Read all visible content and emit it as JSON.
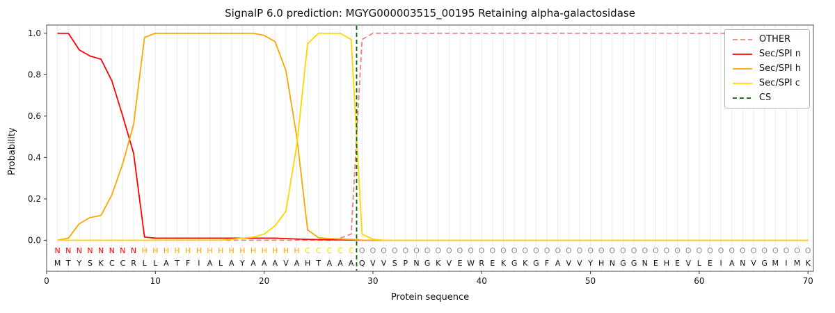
{
  "chart_data": {
    "type": "line",
    "title": "SignalP 6.0 prediction: MGYG000003515_00195 Retaining alpha-galactosidase",
    "xlabel": "Protein sequence",
    "ylabel": "Probability",
    "xlim": [
      0,
      70.5
    ],
    "ylim": [
      -0.15,
      1.04
    ],
    "xticks": [
      0,
      10,
      20,
      30,
      40,
      50,
      60,
      70
    ],
    "yticks": [
      0.0,
      0.2,
      0.4,
      0.6,
      0.8,
      1.0
    ],
    "grid": "vertical-gridline-per-residue",
    "gridline_color": "#ececec",
    "legend_position": "upper right",
    "x": [
      1,
      2,
      3,
      4,
      5,
      6,
      7,
      8,
      9,
      10,
      11,
      12,
      13,
      14,
      15,
      16,
      17,
      18,
      19,
      20,
      21,
      22,
      23,
      24,
      25,
      26,
      27,
      28,
      29,
      30,
      31,
      32,
      33,
      34,
      35,
      36,
      37,
      38,
      39,
      40,
      41,
      42,
      43,
      44,
      45,
      46,
      47,
      48,
      49,
      50,
      51,
      52,
      53,
      54,
      55,
      56,
      57,
      58,
      59,
      60,
      61,
      62,
      63,
      64,
      65,
      66,
      67,
      68,
      69,
      70
    ],
    "series": [
      {
        "name": "OTHER",
        "color": "#f08080",
        "dash": "7 4",
        "values": [
          0,
          0,
          0,
          0,
          0,
          0,
          0,
          0,
          0,
          0,
          0,
          0,
          0,
          0,
          0,
          0,
          0,
          0,
          0,
          0,
          0,
          0,
          0,
          0,
          0,
          0,
          0.01,
          0.03,
          0.97,
          1,
          1,
          1,
          1,
          1,
          1,
          1,
          1,
          1,
          1,
          1,
          1,
          1,
          1,
          1,
          1,
          1,
          1,
          1,
          1,
          1,
          1,
          1,
          1,
          1,
          1,
          1,
          1,
          1,
          1,
          1,
          1,
          1,
          1,
          1,
          1,
          1,
          1,
          1,
          1,
          1
        ]
      },
      {
        "name": "Sec/SPI n",
        "color": "#ff0000",
        "dash": null,
        "values": [
          1,
          1,
          0.92,
          0.89,
          0.875,
          0.77,
          0.6,
          0.42,
          0.015,
          0.01,
          0.01,
          0.01,
          0.01,
          0.01,
          0.01,
          0.01,
          0.01,
          0.01,
          0.01,
          0.01,
          0.01,
          0.008,
          0.006,
          0.004,
          0.003,
          0.002,
          0.002,
          0.001,
          0,
          0,
          0,
          0,
          0,
          0,
          0,
          0,
          0,
          0,
          0,
          0,
          0,
          0,
          0,
          0,
          0,
          0,
          0,
          0,
          0,
          0,
          0,
          0,
          0,
          0,
          0,
          0,
          0,
          0,
          0,
          0,
          0,
          0,
          0,
          0,
          0,
          0,
          0,
          0,
          0,
          0
        ]
      },
      {
        "name": "Sec/SPI h",
        "color": "#ffa500",
        "dash": null,
        "values": [
          0,
          0.01,
          0.08,
          0.11,
          0.12,
          0.22,
          0.37,
          0.56,
          0.98,
          1,
          1,
          1,
          1,
          1,
          1,
          1,
          1,
          1,
          1,
          0.99,
          0.96,
          0.82,
          0.5,
          0.05,
          0.012,
          0.008,
          0.006,
          0.004,
          0,
          0,
          0,
          0,
          0,
          0,
          0,
          0,
          0,
          0,
          0,
          0,
          0,
          0,
          0,
          0,
          0,
          0,
          0,
          0,
          0,
          0,
          0,
          0,
          0,
          0,
          0,
          0,
          0,
          0,
          0,
          0,
          0,
          0,
          0,
          0,
          0,
          0,
          0,
          0,
          0,
          0
        ]
      },
      {
        "name": "Sec/SPI c",
        "color": "#ffd700",
        "dash": null,
        "values": [
          0,
          0,
          0,
          0,
          0,
          0,
          0,
          0,
          0,
          0,
          0,
          0,
          0,
          0,
          0,
          0,
          0.005,
          0.01,
          0.015,
          0.03,
          0.07,
          0.14,
          0.46,
          0.95,
          1,
          1,
          1,
          0.97,
          0.03,
          0.005,
          0,
          0,
          0,
          0,
          0,
          0,
          0,
          0,
          0,
          0,
          0,
          0,
          0,
          0,
          0,
          0,
          0,
          0,
          0,
          0,
          0,
          0,
          0,
          0,
          0,
          0,
          0,
          0,
          0,
          0,
          0,
          0,
          0,
          0,
          0,
          0,
          0,
          0,
          0,
          0
        ]
      }
    ],
    "cs_line": {
      "name": "CS",
      "position": 28.5,
      "color": "#006400",
      "dash": "6 4"
    },
    "sequence": "MTYSKCCRLLATFIALAYAAAVAHTAAAQVVSPNGKVEWREKGKGFAVVYHNGGNEHEVLEIANVGMIMK",
    "region_labels": "NNNNNNNNHHHHHHHHHHHHHHHCCCCCOOOOOOOOOOOOOOOOOOOOOOOOOOOOOOOOOOOOOOOOOO",
    "region_colors": {
      "N": "#ff0000",
      "H": "#ffa500",
      "C": "#ffd700",
      "O": "#8c8c8c"
    },
    "sequence_color": "#111111"
  }
}
